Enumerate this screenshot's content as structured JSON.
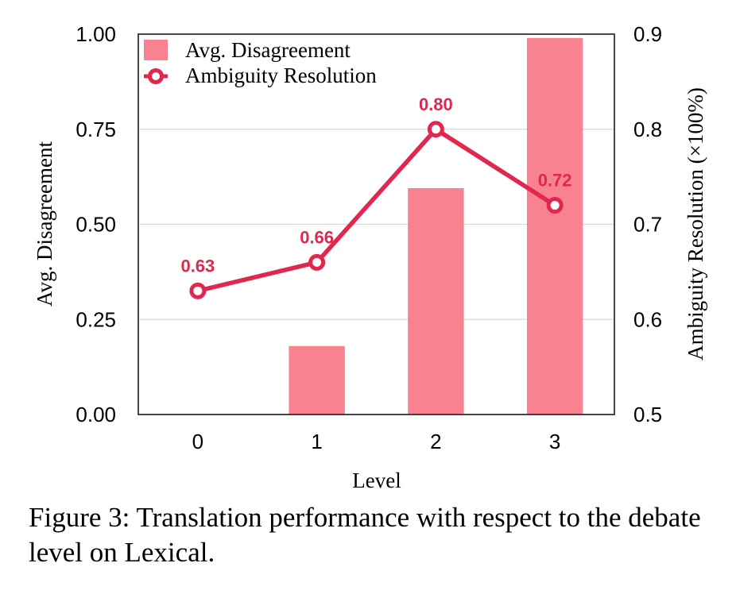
{
  "chart_data": {
    "type": "bar+line",
    "categories": [
      "0",
      "1",
      "2",
      "3"
    ],
    "xlabel": "Level",
    "bar_series": {
      "name": "Avg. Disagreement",
      "axis": "left",
      "values": [
        0.0,
        0.18,
        0.595,
        0.99
      ],
      "color": "#f8828f"
    },
    "line_series": {
      "name": "Ambiguity Resolution",
      "axis": "right",
      "values": [
        0.63,
        0.66,
        0.8,
        0.72
      ],
      "labels": [
        "0.63",
        "0.66",
        "0.80",
        "0.72"
      ],
      "color": "#e0284f"
    },
    "left_axis": {
      "label": "Avg. Disagreement",
      "range": [
        0,
        1
      ],
      "ticks": [
        "0.00",
        "0.25",
        "0.50",
        "0.75",
        "1.00"
      ],
      "tick_values": [
        0,
        0.25,
        0.5,
        0.75,
        1.0
      ]
    },
    "right_axis": {
      "label": "Ambiguity Resolution (×100%)",
      "range": [
        0.5,
        0.9
      ],
      "ticks": [
        "0.5",
        "0.6",
        "0.7",
        "0.8",
        "0.9"
      ],
      "tick_values": [
        0.5,
        0.6,
        0.7,
        0.8,
        0.9
      ]
    },
    "grid": true,
    "legend_position": "top-left"
  },
  "caption": "Figure 3: Translation performance with respect to the debate level on Lexical."
}
